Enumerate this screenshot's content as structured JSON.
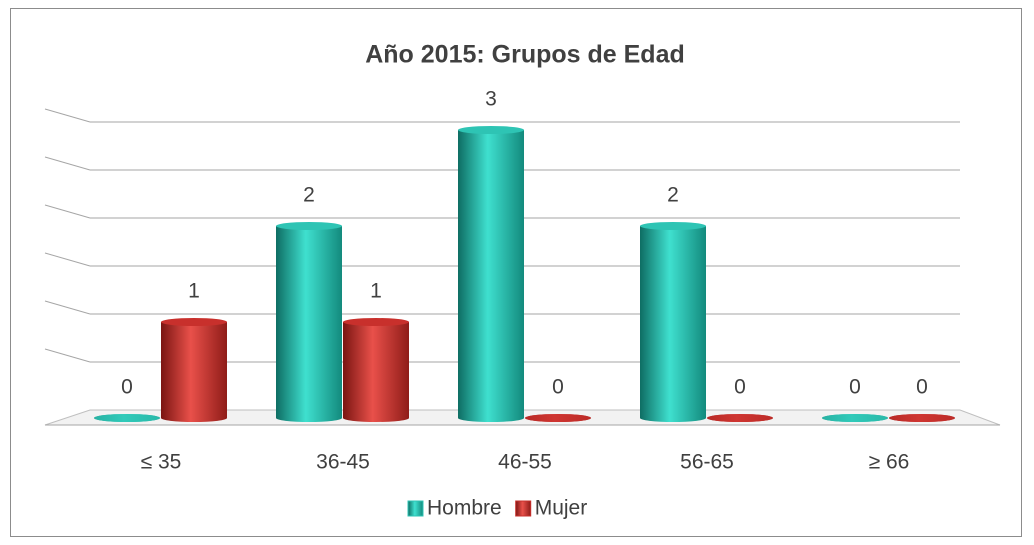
{
  "chart_data": {
    "type": "bar3d",
    "title": "Año 2015:  Grupos de Edad",
    "categories": [
      "≤ 35",
      "36-45",
      "46-55",
      "56-65",
      "≥ 66"
    ],
    "series": [
      {
        "name": "Hombre",
        "color": "#2ec4b4",
        "values": [
          0,
          2,
          3,
          2,
          0
        ]
      },
      {
        "name": "Mujer",
        "color": "#c8302c",
        "values": [
          1,
          1,
          0,
          0,
          0
        ]
      }
    ],
    "ylim": [
      0,
      3
    ],
    "yticks": [
      0,
      0.5,
      1,
      1.5,
      2,
      2.5,
      3
    ],
    "grid": true,
    "legend": "bottom"
  }
}
